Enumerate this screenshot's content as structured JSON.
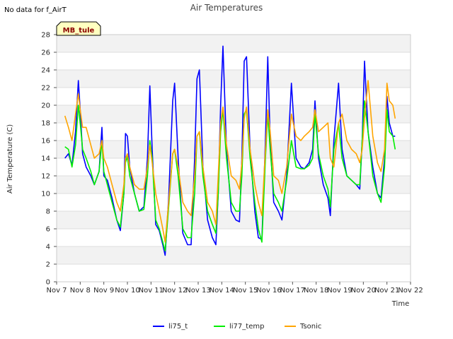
{
  "chart_data": {
    "type": "line",
    "title": "Air Temperatures",
    "note": "No data for f_AirT",
    "site_label": "MB_tule",
    "xlabel": "Time",
    "ylabel": "Air Temperature (C)",
    "xlim": [
      7,
      22
    ],
    "ylim": [
      0,
      28
    ],
    "x_ticks": [
      7,
      8,
      9,
      10,
      11,
      12,
      13,
      14,
      15,
      16,
      17,
      18,
      19,
      20,
      21,
      22
    ],
    "x_tick_labels": [
      "Nov 7",
      "Nov 8",
      "Nov 9",
      "Nov 10",
      "Nov 11",
      "Nov 12",
      "Nov 13",
      "Nov 14",
      "Nov 15",
      "Nov 16",
      "Nov 17",
      "Nov 18",
      "Nov 19",
      "Nov 20",
      "Nov 21",
      "Nov 22"
    ],
    "y_ticks": [
      0,
      2,
      4,
      6,
      8,
      10,
      12,
      14,
      16,
      18,
      20,
      22,
      24,
      26,
      28
    ],
    "grid": true,
    "legend_position": "bottom-center",
    "series": [
      {
        "name": "li75_t",
        "color": "#0000ff",
        "x": [
          7.35,
          7.5,
          7.65,
          7.8,
          7.92,
          8.0,
          8.1,
          8.25,
          8.45,
          8.6,
          8.8,
          8.92,
          9.0,
          9.15,
          9.35,
          9.55,
          9.7,
          9.85,
          9.92,
          10.0,
          10.1,
          10.3,
          10.5,
          10.7,
          10.85,
          10.95,
          11.05,
          11.2,
          11.35,
          11.5,
          11.6,
          11.75,
          11.92,
          12.0,
          12.15,
          12.35,
          12.55,
          12.7,
          12.85,
          12.95,
          13.05,
          13.2,
          13.4,
          13.6,
          13.75,
          13.85,
          13.95,
          14.05,
          14.2,
          14.4,
          14.6,
          14.75,
          14.85,
          14.95,
          15.05,
          15.2,
          15.4,
          15.55,
          15.7,
          15.85,
          15.95,
          16.05,
          16.2,
          16.4,
          16.55,
          16.75,
          16.95,
          17.15,
          17.35,
          17.5,
          17.7,
          17.85,
          17.95,
          18.1,
          18.3,
          18.5,
          18.6,
          18.75,
          18.95,
          19.1,
          19.3,
          19.5,
          19.7,
          19.85,
          19.95,
          20.05,
          20.2,
          20.4,
          20.6,
          20.75,
          20.9,
          21.0,
          21.1,
          21.25,
          21.35
        ],
        "values": [
          14.0,
          14.5,
          13.2,
          17.0,
          22.8,
          19.5,
          14.5,
          13.0,
          12.0,
          11.0,
          12.5,
          17.5,
          12.0,
          11.5,
          9.5,
          7.0,
          5.8,
          10.0,
          16.8,
          16.5,
          13.0,
          10.0,
          8.0,
          8.5,
          14.0,
          22.2,
          15.0,
          6.5,
          5.8,
          4.2,
          3.0,
          9.5,
          20.5,
          22.5,
          14.0,
          5.5,
          4.2,
          4.2,
          14.0,
          23.0,
          24.0,
          13.0,
          7.0,
          5.0,
          4.2,
          10.0,
          20.0,
          26.7,
          15.0,
          8.0,
          7.0,
          6.8,
          14.0,
          25.0,
          25.5,
          15.0,
          8.0,
          5.0,
          4.8,
          16.0,
          25.5,
          16.0,
          9.0,
          8.0,
          7.0,
          12.0,
          22.5,
          14.0,
          13.0,
          12.8,
          13.5,
          15.0,
          20.5,
          14.0,
          11.0,
          9.5,
          7.5,
          16.0,
          22.5,
          15.0,
          12.0,
          11.5,
          11.0,
          10.5,
          16.0,
          25.0,
          17.0,
          13.0,
          10.0,
          9.5,
          14.0,
          21.0,
          18.0,
          16.5,
          16.5
        ]
      },
      {
        "name": "li77_temp",
        "color": "#00ee00",
        "x": [
          7.35,
          7.5,
          7.65,
          7.8,
          7.92,
          8.0,
          8.1,
          8.25,
          8.45,
          8.6,
          8.8,
          8.92,
          9.0,
          9.15,
          9.35,
          9.55,
          9.7,
          9.85,
          9.92,
          10.0,
          10.1,
          10.3,
          10.5,
          10.7,
          10.85,
          10.95,
          11.05,
          11.2,
          11.35,
          11.5,
          11.6,
          11.75,
          11.92,
          12.0,
          12.15,
          12.35,
          12.55,
          12.7,
          12.85,
          12.95,
          13.05,
          13.2,
          13.4,
          13.6,
          13.75,
          13.85,
          13.95,
          14.05,
          14.2,
          14.4,
          14.6,
          14.75,
          14.85,
          14.95,
          15.05,
          15.2,
          15.4,
          15.55,
          15.7,
          15.85,
          15.95,
          16.05,
          16.2,
          16.4,
          16.55,
          16.75,
          16.95,
          17.15,
          17.35,
          17.5,
          17.7,
          17.85,
          17.95,
          18.1,
          18.3,
          18.5,
          18.6,
          18.75,
          18.95,
          19.1,
          19.3,
          19.5,
          19.7,
          19.85,
          19.95,
          20.05,
          20.2,
          20.4,
          20.6,
          20.75,
          20.9,
          21.0,
          21.1,
          21.25,
          21.35
        ],
        "values": [
          15.3,
          15.0,
          13.0,
          15.5,
          20.0,
          18.0,
          15.0,
          14.0,
          12.5,
          11.0,
          12.5,
          16.0,
          12.5,
          11.0,
          9.0,
          7.0,
          6.2,
          10.0,
          13.5,
          14.2,
          12.0,
          10.0,
          8.0,
          8.2,
          12.0,
          16.0,
          14.0,
          7.0,
          6.0,
          4.5,
          3.5,
          8.5,
          14.5,
          15.0,
          12.0,
          6.0,
          5.0,
          5.0,
          10.0,
          16.5,
          17.0,
          12.0,
          8.0,
          6.5,
          5.5,
          10.0,
          17.0,
          19.5,
          14.0,
          9.0,
          8.0,
          8.0,
          12.0,
          19.0,
          19.5,
          14.0,
          9.0,
          6.0,
          4.5,
          14.0,
          19.0,
          15.0,
          10.0,
          9.0,
          8.0,
          11.5,
          16.0,
          13.0,
          12.8,
          12.8,
          13.2,
          14.0,
          19.0,
          14.5,
          12.0,
          10.5,
          8.5,
          15.0,
          18.0,
          14.0,
          12.0,
          11.5,
          11.0,
          11.0,
          16.0,
          20.5,
          17.0,
          12.0,
          10.0,
          9.0,
          13.0,
          19.5,
          17.0,
          16.5,
          15.0
        ]
      },
      {
        "name": "Tsonic",
        "color": "#ffa500",
        "x": [
          7.35,
          7.5,
          7.65,
          7.8,
          7.92,
          8.0,
          8.1,
          8.25,
          8.45,
          8.6,
          8.8,
          8.92,
          9.0,
          9.15,
          9.35,
          9.55,
          9.7,
          9.85,
          9.92,
          10.0,
          10.1,
          10.3,
          10.5,
          10.7,
          10.85,
          10.95,
          11.05,
          11.2,
          11.35,
          11.5,
          11.6,
          11.75,
          11.92,
          12.0,
          12.15,
          12.35,
          12.55,
          12.7,
          12.85,
          12.95,
          13.05,
          13.2,
          13.4,
          13.6,
          13.75,
          13.85,
          13.95,
          14.05,
          14.2,
          14.4,
          14.6,
          14.75,
          14.85,
          14.95,
          15.05,
          15.2,
          15.4,
          15.55,
          15.7,
          15.85,
          15.95,
          16.05,
          16.2,
          16.4,
          16.55,
          16.75,
          16.95,
          17.15,
          17.35,
          17.5,
          17.7,
          17.85,
          17.95,
          18.1,
          18.3,
          18.5,
          18.6,
          18.75,
          18.95,
          19.1,
          19.3,
          19.5,
          19.7,
          19.85,
          19.95,
          20.05,
          20.2,
          20.4,
          20.6,
          20.75,
          20.9,
          21.0,
          21.1,
          21.25,
          21.35
        ],
        "values": [
          18.8,
          17.5,
          16.0,
          19.0,
          21.3,
          19.5,
          17.5,
          17.5,
          15.5,
          14.0,
          14.5,
          16.0,
          14.0,
          13.0,
          11.0,
          9.0,
          8.0,
          11.0,
          14.0,
          14.5,
          13.0,
          11.0,
          10.5,
          10.5,
          13.0,
          15.5,
          13.5,
          10.0,
          8.0,
          6.0,
          4.5,
          9.0,
          14.5,
          15.0,
          13.0,
          9.0,
          8.0,
          7.5,
          12.0,
          16.5,
          17.0,
          13.0,
          9.0,
          8.0,
          6.5,
          12.0,
          18.0,
          19.8,
          15.5,
          12.0,
          11.5,
          10.5,
          13.5,
          18.5,
          19.8,
          15.0,
          11.0,
          9.0,
          7.5,
          15.0,
          19.5,
          17.0,
          12.0,
          11.5,
          10.0,
          13.0,
          19.0,
          16.5,
          16.0,
          16.5,
          17.0,
          17.5,
          19.5,
          17.0,
          17.5,
          18.0,
          14.0,
          13.0,
          18.0,
          19.0,
          16.0,
          15.0,
          14.5,
          13.5,
          15.0,
          18.5,
          22.8,
          16.5,
          13.5,
          12.5,
          15.0,
          22.5,
          20.5,
          20.0,
          18.5
        ]
      }
    ]
  }
}
